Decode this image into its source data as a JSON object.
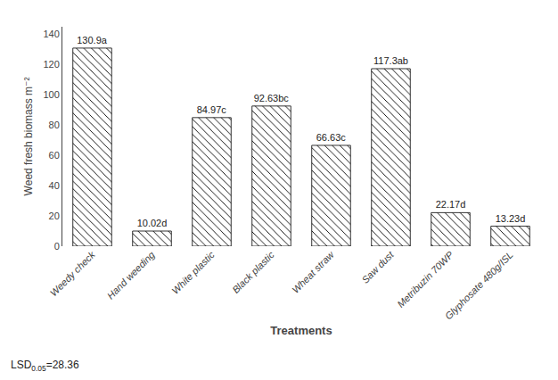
{
  "chart_data": {
    "type": "bar",
    "categories": [
      "Weedy check",
      "Hand weeding",
      "White plastic",
      "Black plastic",
      "Wheat straw",
      "Saw dust",
      "Metribuzin 70WP",
      "Glyphosate 480g/ISL"
    ],
    "values": [
      130.9,
      10.02,
      84.97,
      92.63,
      66.63,
      117.3,
      22.17,
      13.23
    ],
    "value_labels": [
      "130.9a",
      "10.02d",
      "84.97c",
      "92.63bc",
      "66.63c",
      "117.3ab",
      "22.17d",
      "13.23d"
    ],
    "data_labels": true,
    "ylabel": "Weed fresh biomass m⁻²",
    "xlabel": "Treatments",
    "annotation": {
      "text": "LSD",
      "subscript": "0.05",
      "suffix": "=28.36"
    },
    "ylim": [
      0,
      145
    ],
    "yticks": [
      0,
      20,
      40,
      60,
      80,
      100,
      120,
      140
    ],
    "color": "white",
    "grid": false
  }
}
